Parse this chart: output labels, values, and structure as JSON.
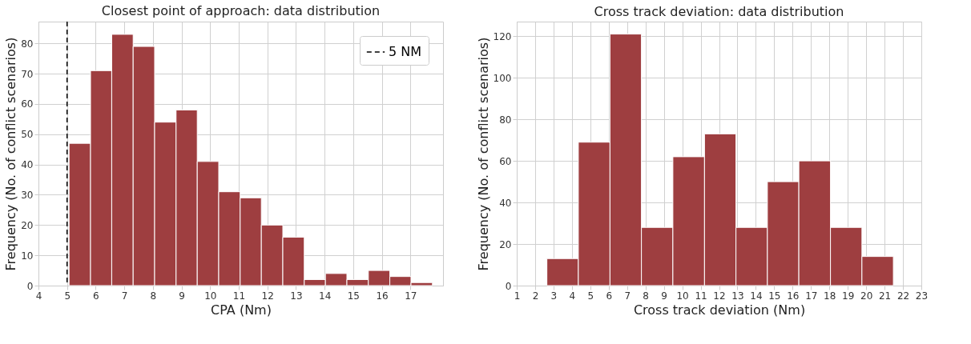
{
  "chart_data": [
    {
      "type": "histogram",
      "title": "Closest point of approach: data distribution",
      "xlabel": "CPA (Nm)",
      "ylabel": "Frequency (No. of  conflict scenarios)",
      "bins": [
        5.07,
        5.82,
        6.56,
        7.31,
        8.06,
        8.81,
        9.55,
        10.3,
        11.05,
        11.79,
        12.54,
        13.29,
        14.03,
        14.78,
        15.53,
        16.28,
        17.02,
        17.77
      ],
      "values": [
        47,
        71,
        83,
        79,
        54,
        58,
        41,
        31,
        29,
        20,
        16,
        2,
        4,
        2,
        5,
        3,
        1
      ],
      "color": "#9e3e40",
      "xlim": [
        4,
        18.14
      ],
      "xticks": [
        4,
        5,
        6,
        7,
        8,
        9,
        10,
        11,
        12,
        13,
        14,
        15,
        16,
        17
      ],
      "ylim": [
        0,
        87.2
      ],
      "yticks": [
        0,
        10,
        20,
        30,
        40,
        50,
        60,
        70,
        80
      ],
      "ref_lines": [
        {
          "axis": "x",
          "value": 5,
          "label": "5 NM",
          "color": "#000000",
          "line_style": "dashed"
        }
      ],
      "grid": true,
      "legend": "top right"
    },
    {
      "type": "histogram",
      "title": "Cross track deviation: data distribution",
      "xlabel": "Cross track deviation (Nm)",
      "ylabel": "Frequency (No. of conflict scenarios)",
      "bins": [
        2.64,
        4.35,
        6.07,
        7.78,
        9.49,
        11.21,
        12.92,
        14.63,
        16.34,
        18.06,
        19.77,
        21.48
      ],
      "values": [
        13,
        69,
        121,
        28,
        62,
        73,
        28,
        50,
        60,
        28,
        14
      ],
      "color": "#9e3e40",
      "xlim": [
        1,
        23
      ],
      "xticks": [
        1,
        2,
        3,
        4,
        5,
        6,
        7,
        8,
        9,
        10,
        11,
        12,
        13,
        14,
        15,
        16,
        17,
        18,
        19,
        20,
        21,
        22,
        23
      ],
      "ylim": [
        0,
        127
      ],
      "yticks": [
        0,
        20,
        40,
        60,
        80,
        100,
        120
      ],
      "grid": true
    }
  ]
}
